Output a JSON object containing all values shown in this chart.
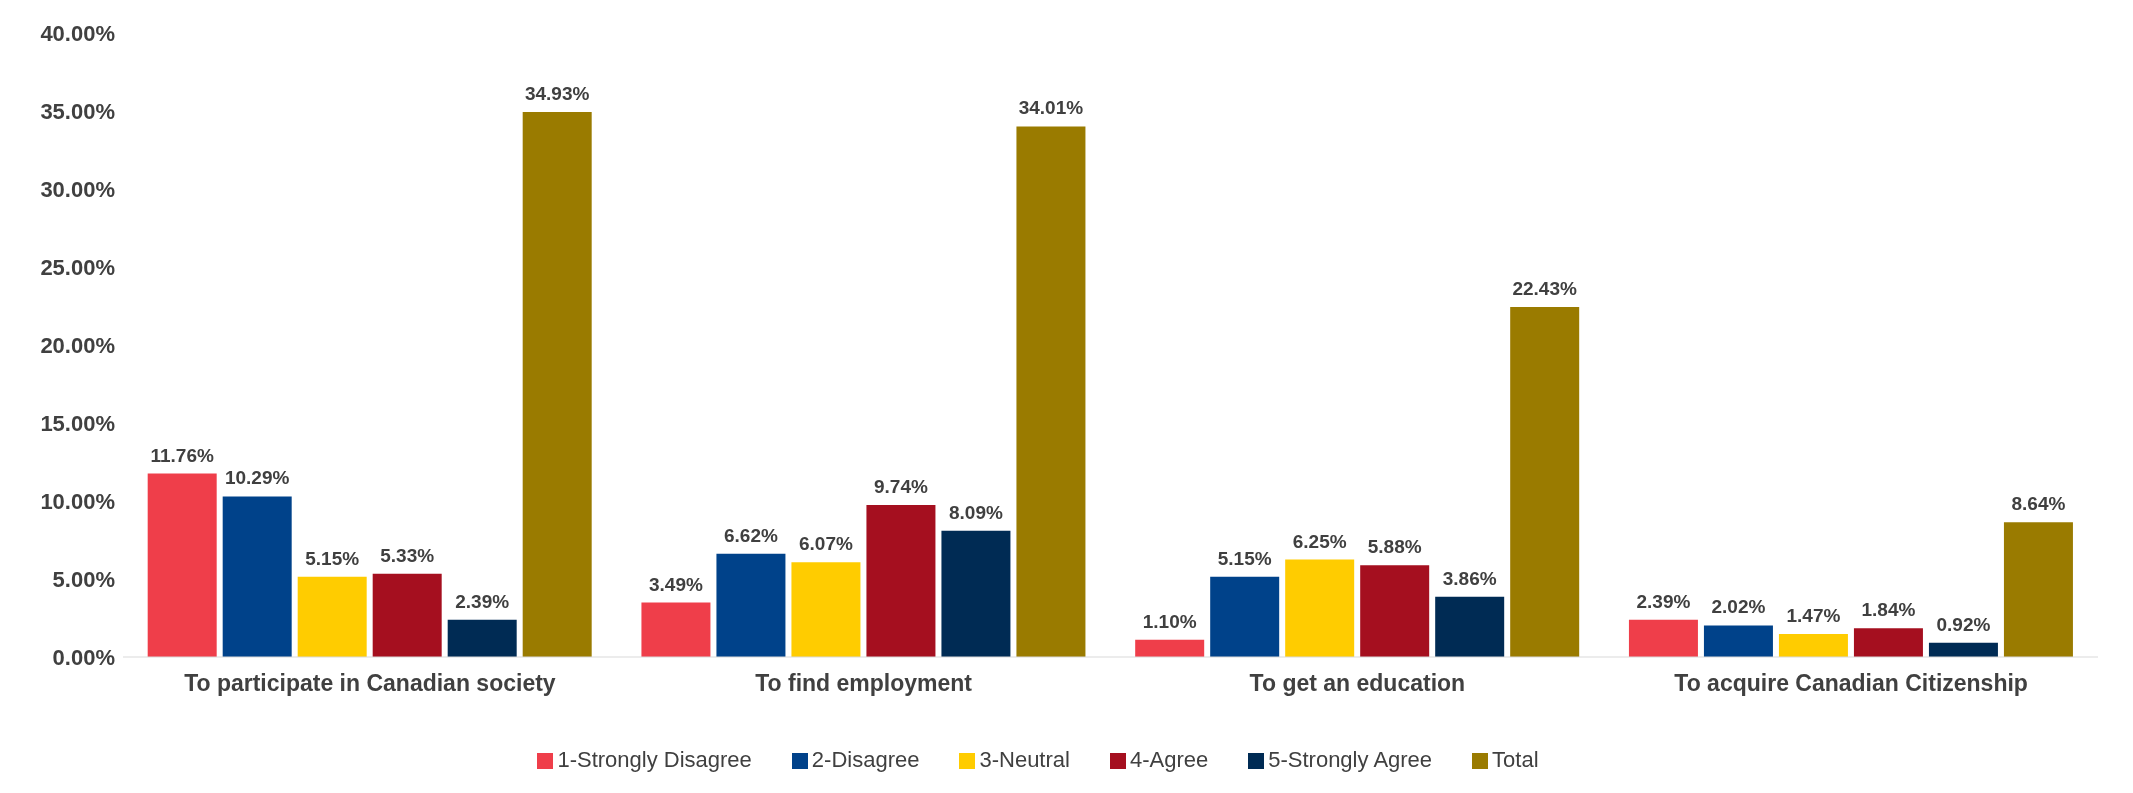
{
  "chart_data": {
    "type": "bar",
    "categories": [
      "To participate in Canadian society",
      "To find employment",
      "To get an education",
      "To acquire Canadian Citizenship"
    ],
    "series": [
      {
        "name": "1-Strongly Disagree",
        "color": "#ef3e4a",
        "values": [
          11.76,
          3.49,
          1.1,
          2.39
        ],
        "value_labels": [
          "11.76%",
          "3.49%",
          "1.10%",
          "2.39%"
        ]
      },
      {
        "name": "2-Disagree",
        "color": "#00428a",
        "values": [
          10.29,
          6.62,
          5.15,
          2.02
        ],
        "value_labels": [
          "10.29%",
          "6.62%",
          "5.15%",
          "2.02%"
        ]
      },
      {
        "name": "3-Neutral",
        "color": "#ffcc00",
        "values": [
          5.15,
          6.07,
          6.25,
          1.47
        ],
        "value_labels": [
          "5.15%",
          "6.07%",
          "6.25%",
          "1.47%"
        ]
      },
      {
        "name": "4-Agree",
        "color": "#a50f1f",
        "values": [
          5.33,
          9.74,
          5.88,
          1.84
        ],
        "value_labels": [
          "5.33%",
          "9.74%",
          "5.88%",
          "1.84%"
        ]
      },
      {
        "name": "5-Strongly Agree",
        "color": "#002b54",
        "values": [
          2.39,
          8.09,
          3.86,
          0.92
        ],
        "value_labels": [
          "2.39%",
          "8.09%",
          "3.86%",
          "0.92%"
        ]
      },
      {
        "name": "Total",
        "color": "#9a7b00",
        "values": [
          34.93,
          34.01,
          22.43,
          8.64
        ],
        "value_labels": [
          "34.93%",
          "34.01%",
          "22.43%",
          "8.64%"
        ]
      }
    ],
    "ylim": [
      0,
      40
    ],
    "yticks": [
      {
        "value": 0,
        "label": "0.00%"
      },
      {
        "value": 5,
        "label": "5.00%"
      },
      {
        "value": 10,
        "label": "10.00%"
      },
      {
        "value": 15,
        "label": "15.00%"
      },
      {
        "value": 20,
        "label": "20.00%"
      },
      {
        "value": 25,
        "label": "25.00%"
      },
      {
        "value": 30,
        "label": "30.00%"
      },
      {
        "value": 35,
        "label": "35.00%"
      },
      {
        "value": 40,
        "label": "40.00%"
      }
    ],
    "grid": false,
    "legend": "bottom"
  }
}
